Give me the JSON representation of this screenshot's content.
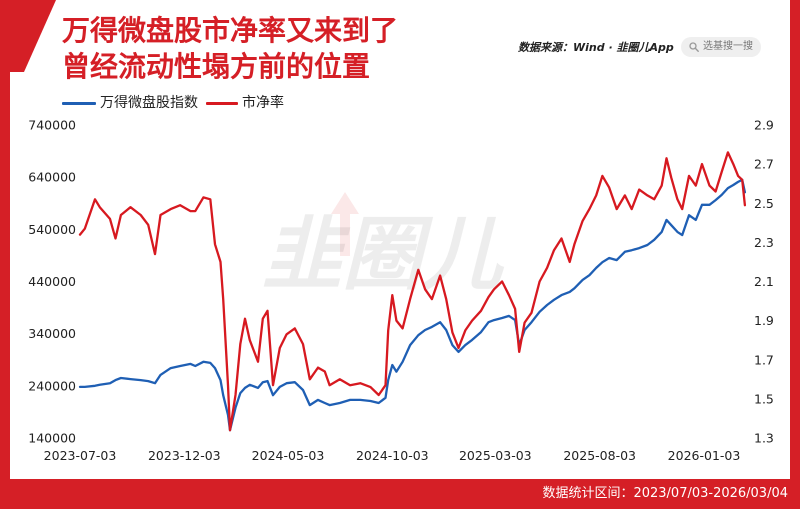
{
  "source": {
    "text": "数据来源：Wind · 韭圈儿App"
  },
  "search": {
    "placeholder": "选基搜一搜",
    "icon": "search-icon"
  },
  "watermark": {
    "text": "韭圈儿",
    "icon": "up-arrow-icon"
  },
  "footer": {
    "range_text": "数据统计区间：2023/07/03-2026/03/04"
  },
  "colors": {
    "brand_red": "#d51f26",
    "index_blue": "#1f5fb4",
    "pb_red": "#d71920"
  },
  "chart_data": {
    "type": "line",
    "title": [
      "万得微盘股市净率又来到了",
      "曾经流动性塌方前的位置"
    ],
    "legend": "top-left",
    "grid": false,
    "x_ticks": [
      "2023-07-03",
      "2023-12-03",
      "2024-05-03",
      "2024-10-03",
      "2025-03-03",
      "2025-08-03",
      "2026-01-03"
    ],
    "y_left": {
      "range": [
        140000,
        740000
      ],
      "ticks": [
        740000,
        640000,
        540000,
        440000,
        340000,
        240000,
        140000
      ]
    },
    "y_right": {
      "range": [
        1.3,
        2.9
      ],
      "ticks": [
        2.9,
        2.7,
        2.5,
        2.3,
        2.1,
        1.9,
        1.7,
        1.5,
        1.3
      ]
    },
    "x": [
      "2023-07-03",
      "2023-07-10",
      "2023-07-25",
      "2023-08-01",
      "2023-08-16",
      "2023-08-24",
      "2023-09-01",
      "2023-09-15",
      "2023-09-30",
      "2023-10-11",
      "2023-10-21",
      "2023-10-29",
      "2023-11-13",
      "2023-11-27",
      "2023-12-12",
      "2023-12-19",
      "2023-12-31",
      "2024-01-10",
      "2024-01-17",
      "2024-01-25",
      "2024-01-29",
      "2024-02-05",
      "2024-02-08",
      "2024-02-16",
      "2024-02-23",
      "2024-03-01",
      "2024-03-08",
      "2024-03-20",
      "2024-03-27",
      "2024-04-03",
      "2024-04-11",
      "2024-04-21",
      "2024-05-01",
      "2024-05-13",
      "2024-05-25",
      "2024-06-04",
      "2024-06-16",
      "2024-06-26",
      "2024-07-03",
      "2024-07-18",
      "2024-08-02",
      "2024-08-17",
      "2024-09-01",
      "2024-09-13",
      "2024-09-23",
      "2024-09-27",
      "2024-10-03",
      "2024-10-09",
      "2024-10-18",
      "2024-10-29",
      "2024-11-10",
      "2024-11-20",
      "2024-11-30",
      "2024-12-12",
      "2024-12-21",
      "2024-12-30",
      "2025-01-08",
      "2025-01-18",
      "2025-01-28",
      "2025-02-10",
      "2025-02-21",
      "2025-03-01",
      "2025-03-13",
      "2025-03-23",
      "2025-04-01",
      "2025-04-07",
      "2025-04-15",
      "2025-04-25",
      "2025-05-07",
      "2025-05-18",
      "2025-05-28",
      "2025-06-08",
      "2025-06-20",
      "2025-06-27",
      "2025-07-09",
      "2025-07-19",
      "2025-07-29",
      "2025-08-07",
      "2025-08-17",
      "2025-08-28",
      "2025-09-09",
      "2025-09-19",
      "2025-09-30",
      "2025-10-12",
      "2025-10-22",
      "2025-11-02",
      "2025-11-09",
      "2025-11-16",
      "2025-11-25",
      "2025-12-02",
      "2025-12-12",
      "2025-12-22",
      "2025-12-31",
      "2026-01-11",
      "2026-01-20",
      "2026-01-29",
      "2026-02-07",
      "2026-02-15",
      "2026-02-22",
      "2026-02-28",
      "2026-03-04"
    ],
    "series": [
      {
        "name": "万得微盘股指数",
        "axis": "left",
        "color": "#1f5fb4",
        "values": [
          238000,
          238000,
          240000,
          242000,
          245000,
          251000,
          255000,
          253000,
          251000,
          249000,
          245000,
          261000,
          274000,
          278000,
          282000,
          278000,
          286000,
          284000,
          274000,
          251000,
          222000,
          184000,
          155000,
          198000,
          226000,
          236000,
          242000,
          236000,
          247000,
          249000,
          222000,
          238000,
          245000,
          247000,
          232000,
          203000,
          213000,
          207000,
          203000,
          207000,
          213000,
          213000,
          211000,
          207000,
          217000,
          251000,
          280000,
          267000,
          286000,
          318000,
          337000,
          347000,
          353000,
          362000,
          347000,
          318000,
          305000,
          318000,
          328000,
          343000,
          362000,
          366000,
          370000,
          374000,
          366000,
          318000,
          347000,
          362000,
          382000,
          395000,
          405000,
          414000,
          420000,
          427000,
          443000,
          452000,
          466000,
          477000,
          485000,
          481000,
          497000,
          500000,
          504000,
          510000,
          520000,
          535000,
          558000,
          548000,
          535000,
          529000,
          567000,
          558000,
          587000,
          587000,
          596000,
          606000,
          619000,
          625000,
          631000,
          635000,
          611000
        ]
      },
      {
        "name": "市净率",
        "axis": "right",
        "color": "#d71920",
        "values": [
          2.34,
          2.37,
          2.52,
          2.48,
          2.42,
          2.32,
          2.44,
          2.48,
          2.44,
          2.39,
          2.24,
          2.44,
          2.47,
          2.49,
          2.46,
          2.46,
          2.53,
          2.52,
          2.29,
          2.2,
          2.01,
          1.57,
          1.34,
          1.52,
          1.78,
          1.91,
          1.8,
          1.69,
          1.91,
          1.95,
          1.57,
          1.76,
          1.83,
          1.86,
          1.78,
          1.6,
          1.66,
          1.64,
          1.57,
          1.6,
          1.57,
          1.58,
          1.56,
          1.52,
          1.57,
          1.85,
          2.03,
          1.9,
          1.86,
          2.01,
          2.16,
          2.06,
          2.01,
          2.13,
          2.01,
          1.84,
          1.76,
          1.85,
          1.9,
          1.95,
          2.02,
          2.06,
          2.1,
          2.03,
          1.96,
          1.74,
          1.89,
          1.94,
          2.1,
          2.17,
          2.26,
          2.32,
          2.2,
          2.29,
          2.41,
          2.47,
          2.54,
          2.64,
          2.58,
          2.47,
          2.54,
          2.47,
          2.57,
          2.54,
          2.52,
          2.59,
          2.73,
          2.63,
          2.52,
          2.47,
          2.64,
          2.59,
          2.7,
          2.59,
          2.56,
          2.66,
          2.76,
          2.7,
          2.64,
          2.62,
          2.49
        ]
      }
    ]
  }
}
